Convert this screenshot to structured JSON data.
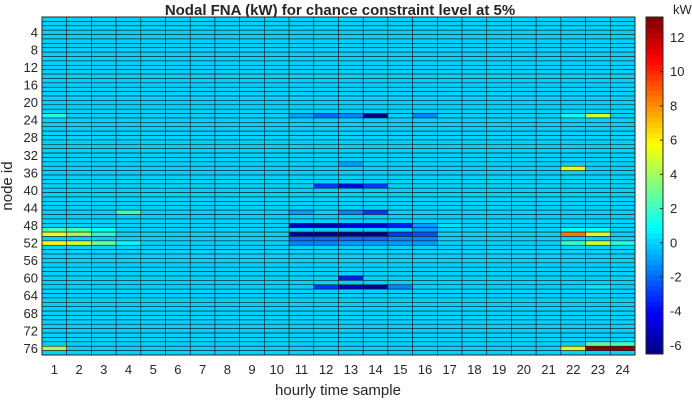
{
  "chart_data": {
    "type": "heatmap",
    "title": "Nodal FNA (kW) for chance constraint level at 5%",
    "xlabel": "hourly time sample",
    "ylabel": "node id",
    "colorbar_label": "kW",
    "colormap": "jet",
    "clim": [
      -6.5,
      13.2
    ],
    "colorbar_ticks": [
      -6,
      -4,
      -2,
      0,
      2,
      4,
      6,
      8,
      10,
      12
    ],
    "x_ticks": [
      1,
      2,
      3,
      4,
      5,
      6,
      7,
      8,
      9,
      10,
      11,
      12,
      13,
      14,
      15,
      16,
      17,
      18,
      19,
      20,
      21,
      22,
      23,
      24
    ],
    "y_ticks": [
      4,
      8,
      12,
      16,
      20,
      24,
      28,
      32,
      36,
      40,
      44,
      48,
      52,
      56,
      60,
      64,
      68,
      72,
      76
    ],
    "n_nodes": 77,
    "n_hours": 24,
    "background_value": 0,
    "grid": true,
    "nonzero_cells": [
      {
        "node": 23,
        "hour": 1,
        "value": 1.5
      },
      {
        "node": 23,
        "hour": 11,
        "value": -1
      },
      {
        "node": 23,
        "hour": 12,
        "value": -2
      },
      {
        "node": 23,
        "hour": 13,
        "value": -1.5
      },
      {
        "node": 23,
        "hour": 14,
        "value": -6.3
      },
      {
        "node": 23,
        "hour": 16,
        "value": -1.5
      },
      {
        "node": 23,
        "hour": 22,
        "value": 1.2
      },
      {
        "node": 23,
        "hour": 23,
        "value": 5
      },
      {
        "node": 34,
        "hour": 13,
        "value": -1
      },
      {
        "node": 35,
        "hour": 22,
        "value": 5.2
      },
      {
        "node": 39,
        "hour": 12,
        "value": -3
      },
      {
        "node": 39,
        "hour": 13,
        "value": -4.5
      },
      {
        "node": 39,
        "hour": 14,
        "value": -3
      },
      {
        "node": 45,
        "hour": 4,
        "value": 2
      },
      {
        "node": 45,
        "hour": 11,
        "value": -1
      },
      {
        "node": 45,
        "hour": 13,
        "value": -1.5
      },
      {
        "node": 45,
        "hour": 14,
        "value": -3
      },
      {
        "node": 48,
        "hour": 11,
        "value": -5.5
      },
      {
        "node": 48,
        "hour": 12,
        "value": -5.5
      },
      {
        "node": 48,
        "hour": 13,
        "value": -5
      },
      {
        "node": 48,
        "hour": 14,
        "value": -5
      },
      {
        "node": 48,
        "hour": 15,
        "value": -3.5
      },
      {
        "node": 48,
        "hour": 16,
        "value": -1
      },
      {
        "node": 48,
        "hour": 17,
        "value": 0.3
      },
      {
        "node": 49,
        "hour": 1,
        "value": 2
      },
      {
        "node": 49,
        "hour": 2,
        "value": 2
      },
      {
        "node": 49,
        "hour": 3,
        "value": 1
      },
      {
        "node": 49,
        "hour": 16,
        "value": -1
      },
      {
        "node": 49,
        "hour": 22,
        "value": 1
      },
      {
        "node": 49,
        "hour": 23,
        "value": 1
      },
      {
        "node": 50,
        "hour": 1,
        "value": 5.5
      },
      {
        "node": 50,
        "hour": 2,
        "value": 4
      },
      {
        "node": 50,
        "hour": 3,
        "value": 1.5
      },
      {
        "node": 50,
        "hour": 11,
        "value": -6
      },
      {
        "node": 50,
        "hour": 12,
        "value": -6.5
      },
      {
        "node": 50,
        "hour": 13,
        "value": -6.5
      },
      {
        "node": 50,
        "hour": 14,
        "value": -6.5
      },
      {
        "node": 50,
        "hour": 15,
        "value": -3
      },
      {
        "node": 50,
        "hour": 16,
        "value": -2.5
      },
      {
        "node": 50,
        "hour": 22,
        "value": 8.5
      },
      {
        "node": 50,
        "hour": 23,
        "value": 5
      },
      {
        "node": 51,
        "hour": 11,
        "value": -2
      },
      {
        "node": 51,
        "hour": 12,
        "value": -2
      },
      {
        "node": 51,
        "hour": 13,
        "value": -2
      },
      {
        "node": 51,
        "hour": 14,
        "value": -2
      },
      {
        "node": 51,
        "hour": 15,
        "value": -1.5
      },
      {
        "node": 51,
        "hour": 16,
        "value": -1.5
      },
      {
        "node": 52,
        "hour": 1,
        "value": 6
      },
      {
        "node": 52,
        "hour": 2,
        "value": 5
      },
      {
        "node": 52,
        "hour": 3,
        "value": 3
      },
      {
        "node": 52,
        "hour": 4,
        "value": 1
      },
      {
        "node": 52,
        "hour": 11,
        "value": -1.5
      },
      {
        "node": 52,
        "hour": 12,
        "value": -1.5
      },
      {
        "node": 52,
        "hour": 13,
        "value": -1
      },
      {
        "node": 52,
        "hour": 14,
        "value": -1
      },
      {
        "node": 52,
        "hour": 15,
        "value": -1
      },
      {
        "node": 52,
        "hour": 16,
        "value": -1
      },
      {
        "node": 52,
        "hour": 22,
        "value": 2
      },
      {
        "node": 52,
        "hour": 23,
        "value": 5
      },
      {
        "node": 52,
        "hour": 24,
        "value": 1.5
      },
      {
        "node": 60,
        "hour": 13,
        "value": -3.5
      },
      {
        "node": 62,
        "hour": 12,
        "value": -3
      },
      {
        "node": 62,
        "hour": 13,
        "value": -5.5
      },
      {
        "node": 62,
        "hour": 14,
        "value": -6
      },
      {
        "node": 62,
        "hour": 15,
        "value": -1.5
      },
      {
        "node": 62,
        "hour": 23,
        "value": 0.5
      },
      {
        "node": 75,
        "hour": 23,
        "value": 2.5
      },
      {
        "node": 75,
        "hour": 24,
        "value": 2
      },
      {
        "node": 76,
        "hour": 1,
        "value": 4
      },
      {
        "node": 76,
        "hour": 22,
        "value": 5
      },
      {
        "node": 76,
        "hour": 23,
        "value": 13
      },
      {
        "node": 76,
        "hour": 24,
        "value": 13
      }
    ]
  }
}
